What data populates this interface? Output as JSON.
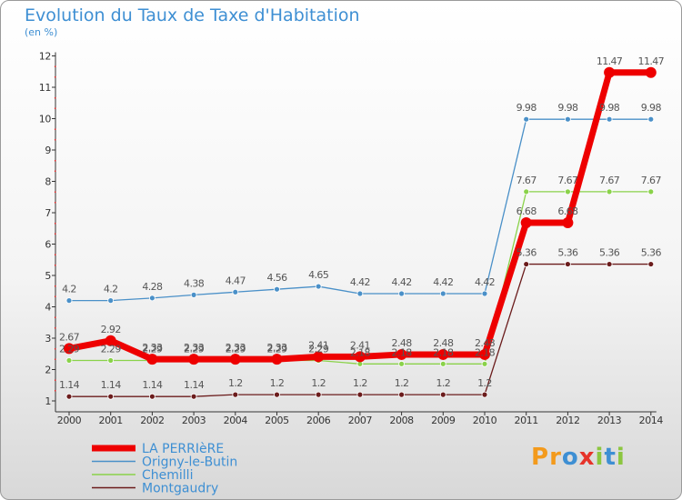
{
  "header": {
    "title": "Evolution du Taux de Taxe d'Habitation",
    "subtitle": "(en %)"
  },
  "logo": {
    "letters": [
      "P",
      "r",
      "o",
      "x",
      "i",
      "t",
      "i"
    ],
    "colors": [
      "#f39a1c",
      "#f39a1c",
      "#3e8fd3",
      "#e6332a",
      "#8cc63f",
      "#3e8fd3",
      "#8cc63f"
    ]
  },
  "chart_data": {
    "type": "line",
    "title": "Evolution du Taux de Taxe d'Habitation",
    "ylabel": "(en %)",
    "xlabel": "",
    "x": [
      "2000",
      "2001",
      "2002",
      "2003",
      "2004",
      "2005",
      "2006",
      "2007",
      "2008",
      "2009",
      "2010",
      "2011",
      "2012",
      "2013",
      "2014"
    ],
    "ylim": [
      1,
      12
    ],
    "yticks": [
      "1",
      "2",
      "3",
      "4",
      "5",
      "6",
      "7",
      "8",
      "9",
      "10",
      "11",
      "12"
    ],
    "legend_position": "bottom-left",
    "series": [
      {
        "name": "Origny-le-Butin",
        "color": "#4a90c8",
        "width": 1.3,
        "values": [
          4.2,
          4.2,
          4.28,
          4.38,
          4.47,
          4.56,
          4.65,
          4.42,
          4.42,
          4.42,
          4.42,
          9.98,
          9.98,
          9.98,
          9.98
        ],
        "labels": [
          "4.2",
          "4.2",
          "4.28",
          "4.38",
          "4.47",
          "4.56",
          "4.65",
          "4.42",
          "4.42",
          "4.42",
          "4.42",
          "9.98",
          "9.98",
          "9.98",
          "9.98"
        ]
      },
      {
        "name": "Chemilli",
        "color": "#8ad24a",
        "width": 1.3,
        "values": [
          2.29,
          2.29,
          2.29,
          2.29,
          2.29,
          2.29,
          2.29,
          2.18,
          2.18,
          2.18,
          2.18,
          7.67,
          7.67,
          7.67,
          7.67
        ],
        "labels": [
          "2.29",
          "2.29",
          "2.29",
          "2.29",
          "2.29",
          "2.29",
          "2.29",
          "2.18",
          "2.18",
          "2.18",
          "2.18",
          "7.67",
          "7.67",
          "7.67",
          "7.67"
        ]
      },
      {
        "name": "Montgaudry",
        "color": "#6b1c1c",
        "width": 1.3,
        "values": [
          1.14,
          1.14,
          1.14,
          1.14,
          1.2,
          1.2,
          1.2,
          1.2,
          1.2,
          1.2,
          1.2,
          5.36,
          5.36,
          5.36,
          5.36
        ],
        "labels": [
          "1.14",
          "1.14",
          "1.14",
          "1.14",
          "1.2",
          "1.2",
          "1.2",
          "1.2",
          "1.2",
          "1.2",
          "1.2",
          "5.36",
          "5.36",
          "5.36",
          "5.36"
        ]
      },
      {
        "name": "LA PERRIèRE",
        "color": "#ee0000",
        "width": 7,
        "values": [
          2.67,
          2.92,
          2.33,
          2.33,
          2.33,
          2.33,
          2.41,
          2.41,
          2.48,
          2.48,
          2.48,
          6.68,
          6.68,
          11.47,
          11.47
        ],
        "labels": [
          "2.67",
          "2.92",
          "2.33",
          "2.33",
          "2.33",
          "2.33",
          "2.41",
          "2.41",
          "2.48",
          "2.48",
          "2.48",
          "6.68",
          "6.68",
          "11.47",
          "11.47"
        ]
      }
    ],
    "legend": [
      {
        "name": "LA PERRIèRE",
        "color": "#ee0000",
        "width": 7
      },
      {
        "name": "Origny-le-Butin",
        "color": "#4a90c8",
        "width": 1.5
      },
      {
        "name": "Chemilli",
        "color": "#8ad24a",
        "width": 1.5
      },
      {
        "name": "Montgaudry",
        "color": "#6b1c1c",
        "width": 1.5
      }
    ]
  }
}
